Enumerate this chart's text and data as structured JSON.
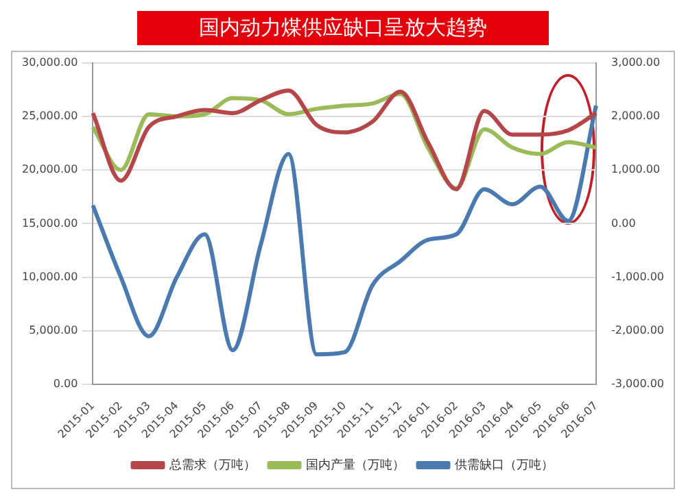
{
  "chart_data": {
    "type": "line",
    "title": "国内动力煤供应缺口呈放大趋势",
    "categories": [
      "2015-01",
      "2015-02",
      "2015-03",
      "2015-04",
      "2015-05",
      "2015-06",
      "2015-07",
      "2015-08",
      "2015-09",
      "2015-10",
      "2015-11",
      "2015-12",
      "2016-01",
      "2016-02",
      "2016-03",
      "2016-04",
      "2016-05",
      "2016-06",
      "2016-07"
    ],
    "series": [
      {
        "name": "总需求（万吨）",
        "color": "#b5474a",
        "values": [
          25300,
          19000,
          24000,
          25000,
          25600,
          25300,
          26500,
          27400,
          24200,
          23500,
          24500,
          27300,
          22500,
          18200,
          25500,
          23300,
          23300,
          23700,
          25300
        ]
      },
      {
        "name": "国内产量（万吨）",
        "color": "#9bbb59",
        "values": [
          24000,
          20000,
          25200,
          25000,
          25200,
          26700,
          26500,
          25200,
          25700,
          26000,
          26200,
          27100,
          22000,
          18300,
          23800,
          22100,
          21500,
          22600,
          22100
        ]
      },
      {
        "name": "供需缺口（万吨）",
        "color": "#4a7ab0",
        "axis": "y2",
        "values": [
          340,
          -1000,
          -2100,
          -1000,
          -200,
          -2360,
          -400,
          1300,
          -2440,
          -2400,
          -1150,
          -700,
          -300,
          -200,
          640,
          360,
          690,
          50,
          2200
        ]
      }
    ],
    "ylim": [
      0,
      30000
    ],
    "yticks": [
      {
        "value": 0,
        "label": "0.00"
      },
      {
        "value": 5000,
        "label": "5,000.00"
      },
      {
        "value": 10000,
        "label": "10,000.00"
      },
      {
        "value": 15000,
        "label": "15,000.00"
      },
      {
        "value": 20000,
        "label": "20,000.00"
      },
      {
        "value": 25000,
        "label": "25,000.00"
      },
      {
        "value": 30000,
        "label": "30,000.00"
      }
    ],
    "y2lim": [
      -3000,
      3000
    ],
    "y2ticks": [
      {
        "value": -3000,
        "label": "-3,000.00"
      },
      {
        "value": -2000,
        "label": "-2,000.00"
      },
      {
        "value": -1000,
        "label": "-1,000.00"
      },
      {
        "value": 0,
        "label": "0.00"
      },
      {
        "value": 1000,
        "label": "1,000.00"
      },
      {
        "value": 2000,
        "label": "2,000.00"
      },
      {
        "value": 3000,
        "label": "3,000.00"
      }
    ],
    "grid": "y",
    "legend": "bottom",
    "marker": "none",
    "line_style": "solid"
  }
}
